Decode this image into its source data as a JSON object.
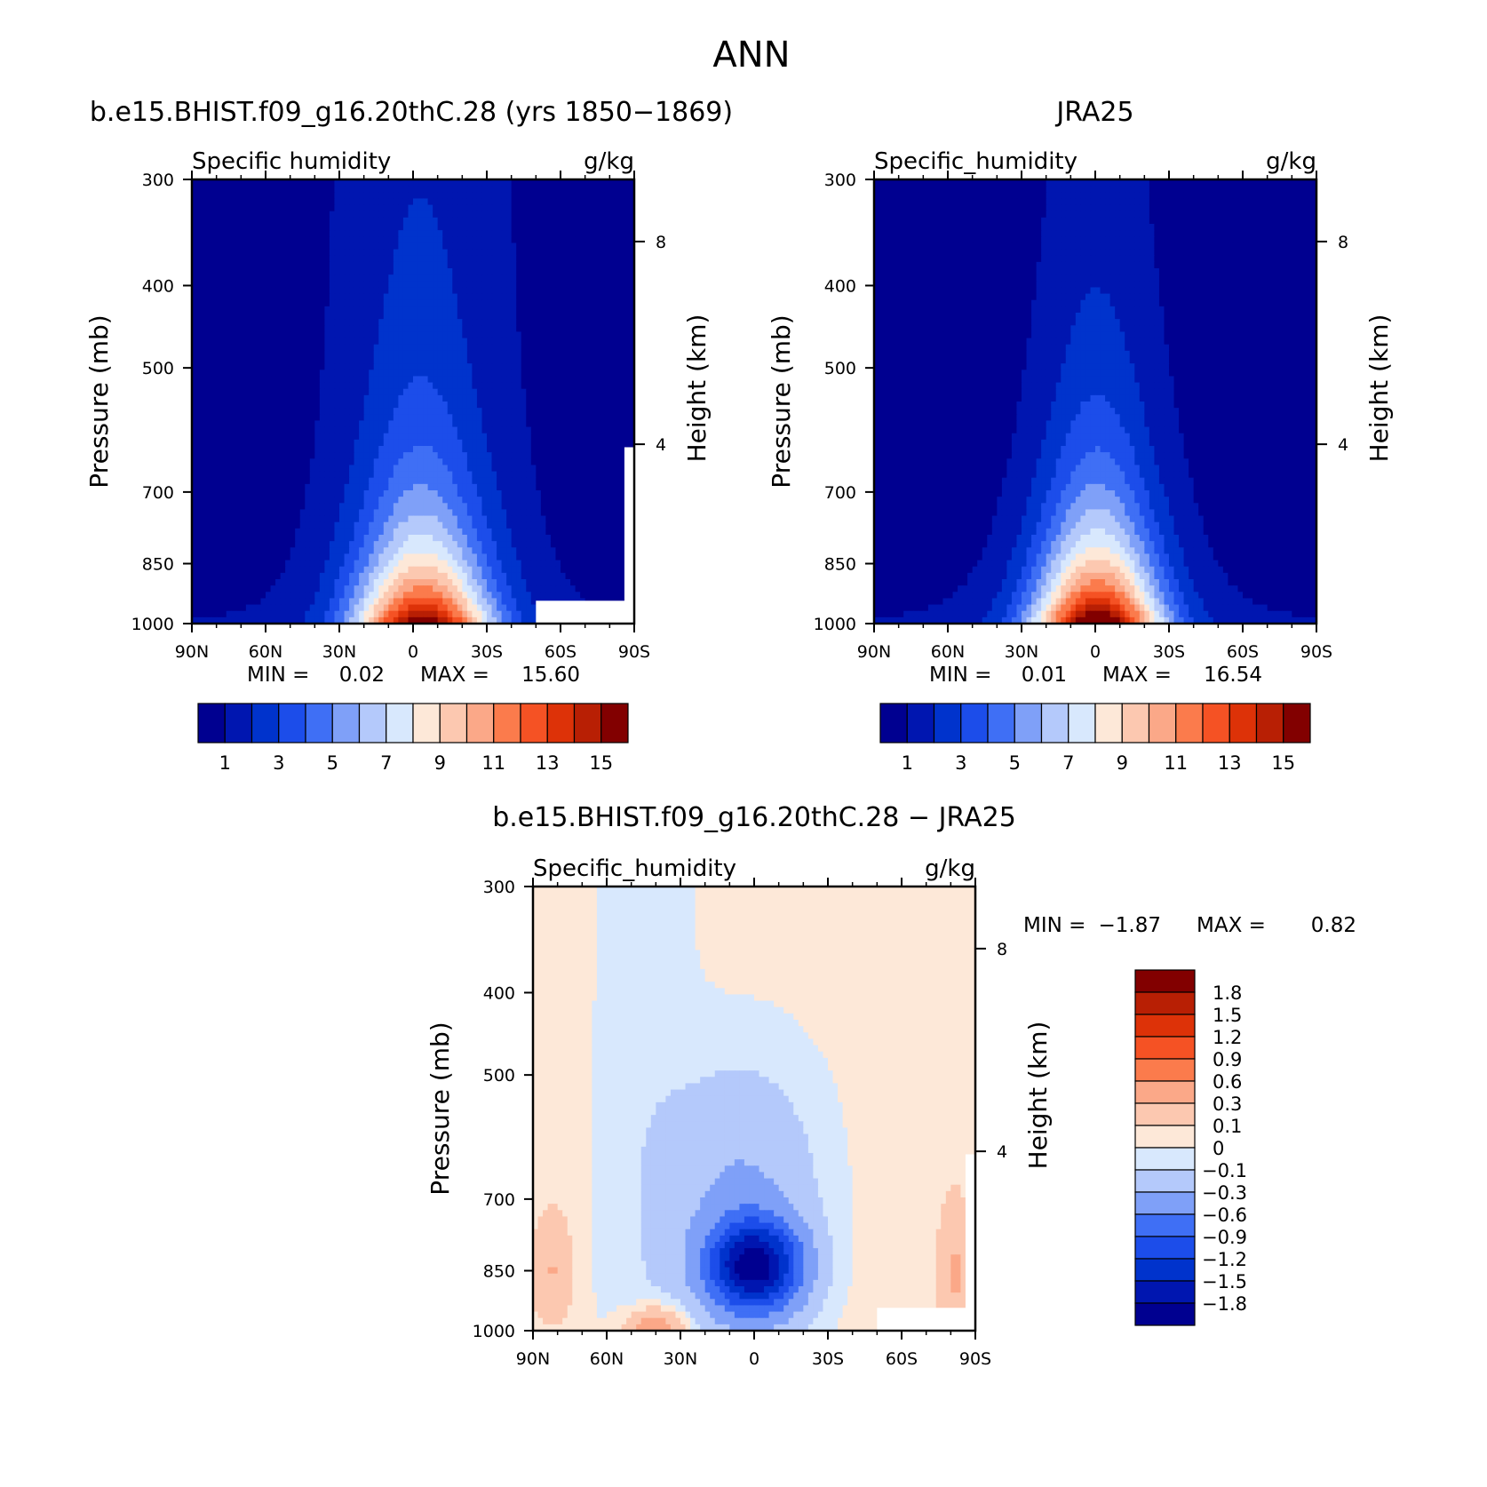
{
  "main_title": "ANN",
  "chart_data": [
    {
      "type": "heatmap",
      "title": "b.e15.BHIST.f09_g16.20thC.28 (yrs 1850−1869)",
      "variable": "Specific humidity",
      "units": "g/kg",
      "ylabel": "Pressure (mb)",
      "y2label": "Height (km)",
      "x_ticks": [
        "90N",
        "60N",
        "30N",
        "0",
        "30S",
        "60S",
        "90S"
      ],
      "x_values": [
        90,
        60,
        30,
        0,
        -30,
        -60,
        -90
      ],
      "y_ticks": [
        "300",
        "400",
        "500",
        "700",
        "850",
        "1000"
      ],
      "y2_ticks": [
        "8",
        "4"
      ],
      "ylim": [
        1000,
        300
      ],
      "y_scale": "log",
      "min_label": "MIN =",
      "min_value": "0.02",
      "max_label": "MAX =",
      "max_value": "15.60",
      "peak": {
        "lat": -5,
        "p": 1000,
        "value": 15.6
      },
      "colorbar_levels": [
        1,
        2,
        3,
        4,
        5,
        6,
        7,
        8,
        9,
        10,
        11,
        12,
        13,
        14,
        15
      ],
      "colorbar_labels": [
        "1",
        "3",
        "5",
        "7",
        "9",
        "11",
        "13",
        "15"
      ],
      "colors": [
        "#000090",
        "#0016b0",
        "#0033cc",
        "#1c4dea",
        "#3f6ff5",
        "#7fa0f8",
        "#b4c9fb",
        "#d8e8fd",
        "#fde8d8",
        "#fcc8b0",
        "#fba888",
        "#fb7b4c",
        "#f55224",
        "#dd3208",
        "#b81f04",
        "#820000"
      ]
    },
    {
      "type": "heatmap",
      "title": "JRA25",
      "variable": "Specific_humidity",
      "units": "g/kg",
      "ylabel": "Pressure (mb)",
      "y2label": "Height (km)",
      "x_ticks": [
        "90N",
        "60N",
        "30N",
        "0",
        "30S",
        "60S",
        "90S"
      ],
      "x_values": [
        90,
        60,
        30,
        0,
        -30,
        -60,
        -90
      ],
      "y_ticks": [
        "300",
        "400",
        "500",
        "700",
        "850",
        "1000"
      ],
      "y2_ticks": [
        "8",
        "4"
      ],
      "ylim": [
        1000,
        300
      ],
      "y_scale": "log",
      "min_label": "MIN =",
      "min_value": "0.01",
      "max_label": "MAX =",
      "max_value": "16.54",
      "peak": {
        "lat": -2,
        "p": 1000,
        "value": 16.54
      },
      "colorbar_levels": [
        1,
        2,
        3,
        4,
        5,
        6,
        7,
        8,
        9,
        10,
        11,
        12,
        13,
        14,
        15
      ],
      "colorbar_labels": [
        "1",
        "3",
        "5",
        "7",
        "9",
        "11",
        "13",
        "15"
      ],
      "colors": [
        "#000090",
        "#0016b0",
        "#0033cc",
        "#1c4dea",
        "#3f6ff5",
        "#7fa0f8",
        "#b4c9fb",
        "#d8e8fd",
        "#fde8d8",
        "#fcc8b0",
        "#fba888",
        "#fb7b4c",
        "#f55224",
        "#dd3208",
        "#b81f04",
        "#820000"
      ]
    },
    {
      "type": "heatmap",
      "title": "b.e15.BHIST.f09_g16.20thC.28 − JRA25",
      "variable": "Specific_humidity",
      "units": "g/kg",
      "ylabel": "Pressure (mb)",
      "y2label": "Height (km)",
      "x_ticks": [
        "90N",
        "60N",
        "30N",
        "0",
        "30S",
        "60S",
        "90S"
      ],
      "x_values": [
        90,
        60,
        30,
        0,
        -30,
        -60,
        -90
      ],
      "y_ticks": [
        "300",
        "400",
        "500",
        "700",
        "850",
        "1000"
      ],
      "y2_ticks": [
        "8",
        "4"
      ],
      "ylim": [
        1000,
        300
      ],
      "y_scale": "log",
      "min_label": "MIN =",
      "min_value": "−1.87",
      "max_label": "MAX =",
      "max_value": "0.82",
      "colorbar_levels": [
        -1.8,
        -1.5,
        -1.2,
        -0.9,
        -0.6,
        -0.3,
        -0.1,
        0,
        0.1,
        0.3,
        0.6,
        0.9,
        1.2,
        1.5,
        1.8
      ],
      "colorbar_labels": [
        "1.8",
        "1.5",
        "1.2",
        "0.9",
        "0.6",
        "0.3",
        "0.1",
        "0",
        "−0.1",
        "−0.3",
        "−0.6",
        "−0.9",
        "−1.2",
        "−1.5",
        "−1.8"
      ],
      "colors": [
        "#820000",
        "#b81f04",
        "#dd3208",
        "#f55224",
        "#fb7b4c",
        "#fba888",
        "#fcc8b0",
        "#fde8d8",
        "#d8e8fd",
        "#b4c9fb",
        "#7fa0f8",
        "#3f6ff5",
        "#1c4dea",
        "#0033cc",
        "#0016b0",
        "#000090"
      ]
    }
  ]
}
